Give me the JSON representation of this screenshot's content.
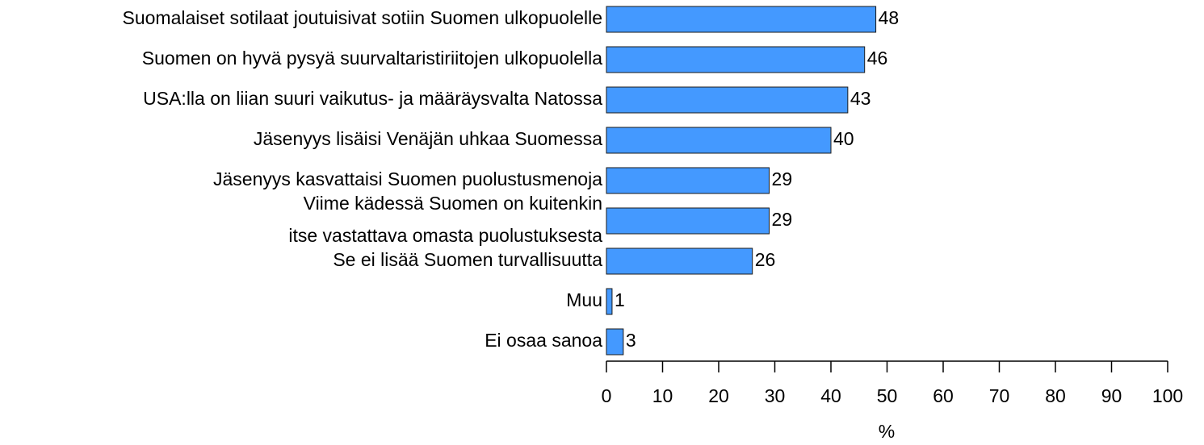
{
  "chart_data": {
    "type": "bar",
    "orientation": "horizontal",
    "categories": [
      "Suomalaiset sotilaat joutuisivat sotiin Suomen ulkopuolelle",
      "Suomen on hyvä pysyä suurvaltaristiriitojen ulkopuolella",
      "USA:lla on liian suuri vaikutus- ja määräysvalta Natossa",
      "Jäsenyys lisäisi Venäjän uhkaa Suomessa",
      "Jäsenyys kasvattaisi Suomen puolustusmenoja",
      "Viime kädessä Suomen on kuitenkin\nitse vastattava omasta puolustuksesta",
      "Se ei lisää Suomen turvallisuutta",
      "Muu",
      "Ei osaa sanoa"
    ],
    "values": [
      48,
      46,
      43,
      40,
      29,
      29,
      26,
      1,
      3
    ],
    "color": "#4499ff",
    "xlabel": "%",
    "xlim": [
      0,
      100
    ],
    "xticks": [
      0,
      10,
      20,
      30,
      40,
      50,
      60,
      70,
      80,
      90,
      100
    ],
    "grid": false
  }
}
